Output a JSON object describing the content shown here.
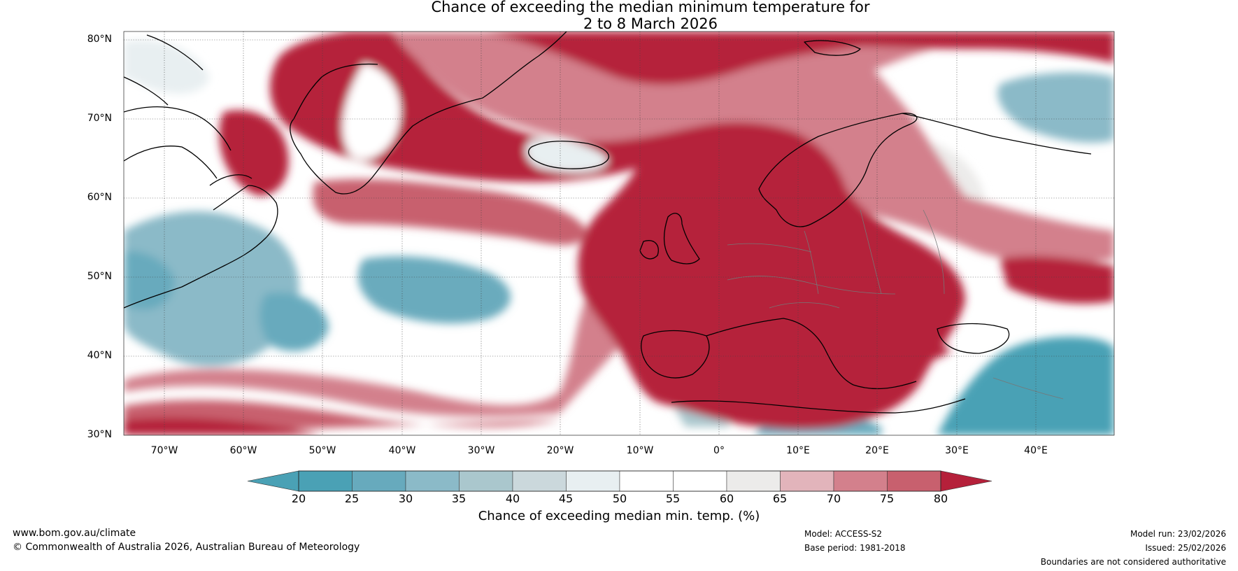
{
  "title": {
    "line1": "Chance of exceeding the median minimum temperature for",
    "line2": "2 to 8 March 2026"
  },
  "axes": {
    "lat_labels": [
      "80°N",
      "70°N",
      "60°N",
      "50°N",
      "40°N",
      "30°N"
    ],
    "lon_labels": [
      "70°W",
      "60°W",
      "50°W",
      "40°W",
      "30°W",
      "20°W",
      "10°W",
      "0°",
      "10°E",
      "20°E",
      "30°E",
      "40°E"
    ]
  },
  "colorbar": {
    "ticks": [
      "20",
      "25",
      "30",
      "35",
      "40",
      "45",
      "50",
      "55",
      "60",
      "65",
      "70",
      "75",
      "80"
    ],
    "colors": [
      "#4aa1b5",
      "#67aabd",
      "#8bbac8",
      "#aac7cd",
      "#cbd8dc",
      "#e8eff1",
      "#ffffff",
      "#ffffff",
      "#ecebea",
      "#e2b4bb",
      "#d3808c",
      "#c8606e",
      "#bd3e50"
    ],
    "under_color": "#4aa1b5",
    "over_color": "#b5203a",
    "label": "Chance of exceeding median min. temp. (%)"
  },
  "footer": {
    "website": "www.bom.gov.au/climate",
    "copyright": "© Commonwealth of Australia 2026, Australian Bureau of Meteorology",
    "model": "Model: ACCESS-S2",
    "base_period": "Base period: 1981-2018",
    "model_run": "Model run: 23/02/2026",
    "issued": "Issued: 25/02/2026",
    "disclaimer": "Boundaries are not considered authoritative"
  }
}
